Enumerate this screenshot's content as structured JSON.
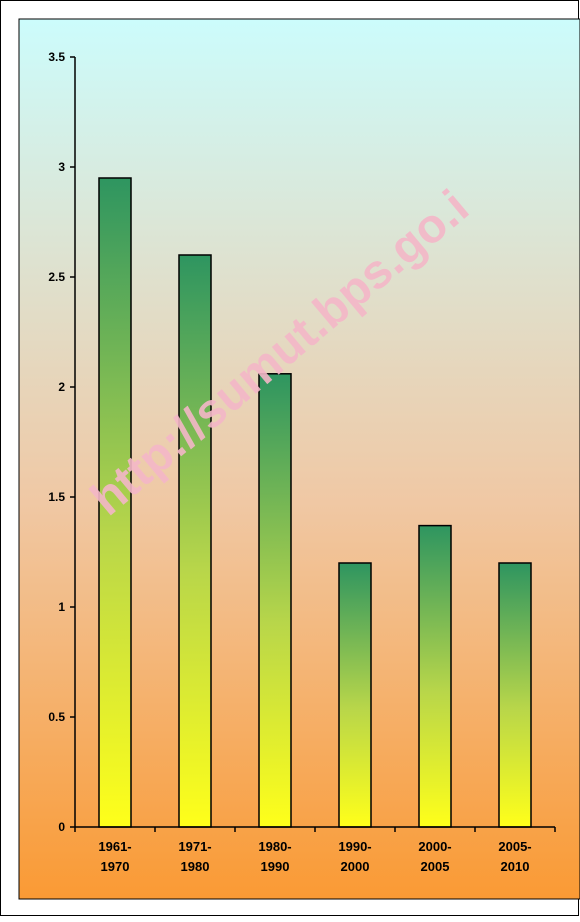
{
  "chart_data": {
    "type": "bar",
    "categories": [
      [
        "1961-",
        "1970"
      ],
      [
        "1971-",
        "1980"
      ],
      [
        "1980-",
        "1990"
      ],
      [
        "1990-",
        "2000"
      ],
      [
        "2000-",
        "2005"
      ],
      [
        "2005-",
        "2010"
      ]
    ],
    "values": [
      2.95,
      2.6,
      2.06,
      1.2,
      1.37,
      1.2
    ],
    "ylim": [
      0,
      3.5
    ],
    "yticks": [
      "0",
      "0.5",
      "1",
      "1.5",
      "2",
      "2.5",
      "3",
      "3.5"
    ],
    "title": "",
    "xlabel": "",
    "ylabel": "",
    "grid": false,
    "legend": "none"
  },
  "watermark": "http://sumut.bps.go.i",
  "colors": {
    "background_top": "#ccfcfc",
    "background_mid": "#f0c8a4",
    "background_bottom": "#fa9a34",
    "bar_top": "#2e9560",
    "bar_bottom": "#ffff1a",
    "watermark": "#f4b7c8"
  }
}
